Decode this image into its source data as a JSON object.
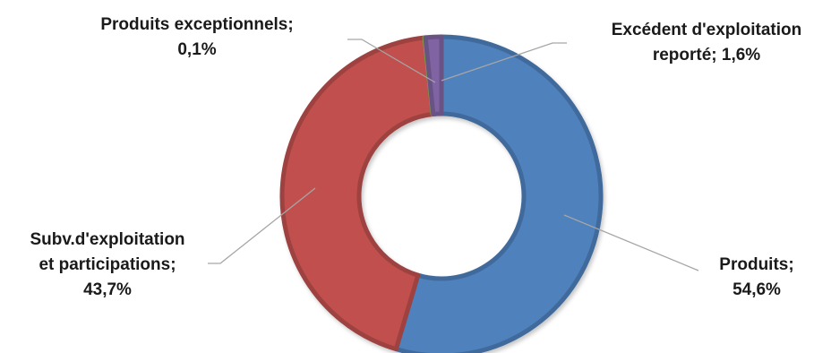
{
  "chart_data": {
    "type": "pie",
    "variant": "donut",
    "title": "",
    "legend": "none",
    "slices": [
      {
        "name": "Produits",
        "value": 54.6,
        "label_line1": "Produits;",
        "label_line2": "54,6%",
        "color": "#4F81BD"
      },
      {
        "name": "Subv.d'exploitation et participations",
        "value": 43.7,
        "label_line1": "Subv.d'exploitation",
        "label_line2": "et participations;",
        "label_line3": "43,7%",
        "color": "#C0504D"
      },
      {
        "name": "Produits exceptionnels",
        "value": 0.1,
        "label_line1": "Produits exceptionnels;",
        "label_line2": "0,1%",
        "color": "#9BBB59"
      },
      {
        "name": "Excédent d'exploitation reporté",
        "value": 1.6,
        "label_line1": "Excédent d'exploitation",
        "label_line2": "reporté; 1,6%",
        "color": "#8064A2"
      }
    ],
    "leader_color": "#A6A6A6"
  }
}
